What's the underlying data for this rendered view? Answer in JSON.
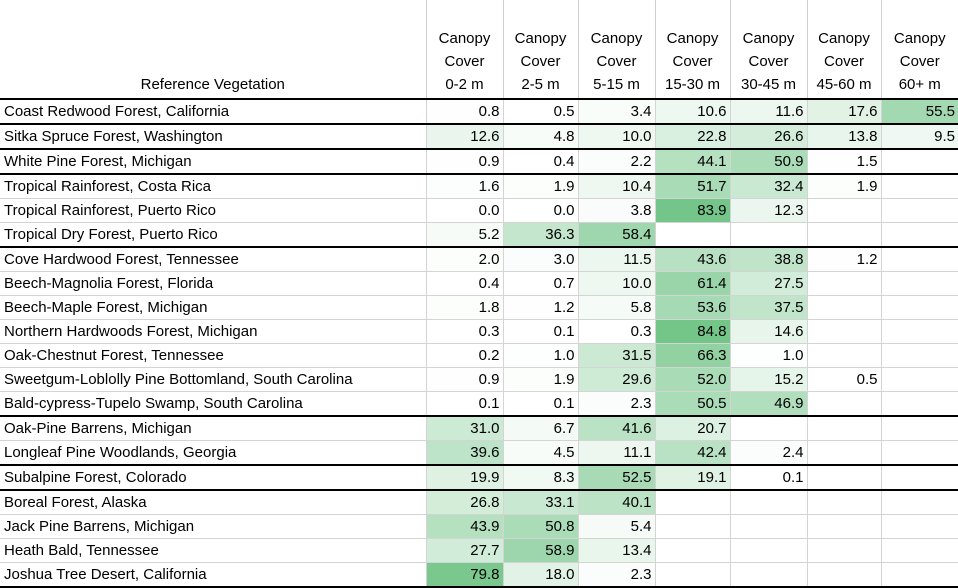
{
  "chart_data": {
    "type": "table",
    "row_header_label": "Reference Vegetation",
    "columns": [
      [
        "Canopy",
        "Cover",
        "0-2 m"
      ],
      [
        "Canopy",
        "Cover",
        "2-5 m"
      ],
      [
        "Canopy",
        "Cover",
        "5-15 m"
      ],
      [
        "Canopy",
        "Cover",
        "15-30 m"
      ],
      [
        "Canopy",
        "Cover",
        "30-45 m"
      ],
      [
        "Canopy",
        "Cover",
        "45-60 m"
      ],
      [
        "Canopy",
        "Cover",
        "60+ m"
      ]
    ],
    "rows": [
      {
        "name": "Coast Redwood Forest, California",
        "values": [
          "0.8",
          "0.5",
          "3.4",
          "10.6",
          "11.6",
          "17.6",
          "55.5"
        ]
      },
      {
        "name": "Sitka Spruce Forest, Washington",
        "values": [
          "12.6",
          "4.8",
          "10.0",
          "22.8",
          "26.6",
          "13.8",
          "9.5"
        ]
      },
      {
        "name": "White Pine Forest, Michigan",
        "values": [
          "0.9",
          "0.4",
          "2.2",
          "44.1",
          "50.9",
          "1.5",
          ""
        ]
      },
      {
        "name": "Tropical Rainforest, Costa Rica",
        "values": [
          "1.6",
          "1.9",
          "10.4",
          "51.7",
          "32.4",
          "1.9",
          ""
        ]
      },
      {
        "name": "Tropical Rainforest, Puerto Rico",
        "values": [
          "0.0",
          "0.0",
          "3.8",
          "83.9",
          "12.3",
          "",
          ""
        ]
      },
      {
        "name": "Tropical Dry Forest, Puerto Rico",
        "values": [
          "5.2",
          "36.3",
          "58.4",
          "",
          "",
          "",
          ""
        ]
      },
      {
        "name": "Cove Hardwood Forest, Tennessee",
        "values": [
          "2.0",
          "3.0",
          "11.5",
          "43.6",
          "38.8",
          "1.2",
          ""
        ]
      },
      {
        "name": "Beech-Magnolia Forest, Florida",
        "values": [
          "0.4",
          "0.7",
          "10.0",
          "61.4",
          "27.5",
          "",
          ""
        ]
      },
      {
        "name": "Beech-Maple Forest, Michigan",
        "values": [
          "1.8",
          "1.2",
          "5.8",
          "53.6",
          "37.5",
          "",
          ""
        ]
      },
      {
        "name": "Northern Hardwoods Forest, Michigan",
        "values": [
          "0.3",
          "0.1",
          "0.3",
          "84.8",
          "14.6",
          "",
          ""
        ]
      },
      {
        "name": "Oak-Chestnut Forest, Tennessee",
        "values": [
          "0.2",
          "1.0",
          "31.5",
          "66.3",
          "1.0",
          "",
          ""
        ]
      },
      {
        "name": "Sweetgum-Loblolly Pine Bottomland, South Carolina",
        "values": [
          "0.9",
          "1.9",
          "29.6",
          "52.0",
          "15.2",
          "0.5",
          ""
        ]
      },
      {
        "name": "Bald-cypress-Tupelo Swamp, South Carolina",
        "values": [
          "0.1",
          "0.1",
          "2.3",
          "50.5",
          "46.9",
          "",
          ""
        ]
      },
      {
        "name": "Oak-Pine Barrens, Michigan",
        "values": [
          "31.0",
          "6.7",
          "41.6",
          "20.7",
          "",
          "",
          ""
        ]
      },
      {
        "name": "Longleaf Pine Woodlands, Georgia",
        "values": [
          "39.6",
          "4.5",
          "11.1",
          "42.4",
          "2.4",
          "",
          ""
        ]
      },
      {
        "name": "Subalpine Forest, Colorado",
        "values": [
          "19.9",
          "8.3",
          "52.5",
          "19.1",
          "0.1",
          "",
          ""
        ]
      },
      {
        "name": "Boreal Forest, Alaska",
        "values": [
          "26.8",
          "33.1",
          "40.1",
          "",
          "",
          "",
          ""
        ]
      },
      {
        "name": "Jack Pine Barrens, Michigan",
        "values": [
          "43.9",
          "50.8",
          "5.4",
          "",
          "",
          "",
          ""
        ]
      },
      {
        "name": "Heath Bald, Tennessee",
        "values": [
          "27.7",
          "58.9",
          "13.4",
          "",
          "",
          "",
          ""
        ]
      },
      {
        "name": "Joshua Tree Desert, California",
        "values": [
          "79.8",
          "18.0",
          "2.3",
          "",
          "",
          "",
          ""
        ]
      }
    ],
    "group_end_rows": [
      0,
      1,
      2,
      5,
      12,
      14,
      15,
      19
    ],
    "heatmap": {
      "low_color": "#ffffff",
      "high_color": "#63be7b",
      "max_value": 84.8
    }
  }
}
